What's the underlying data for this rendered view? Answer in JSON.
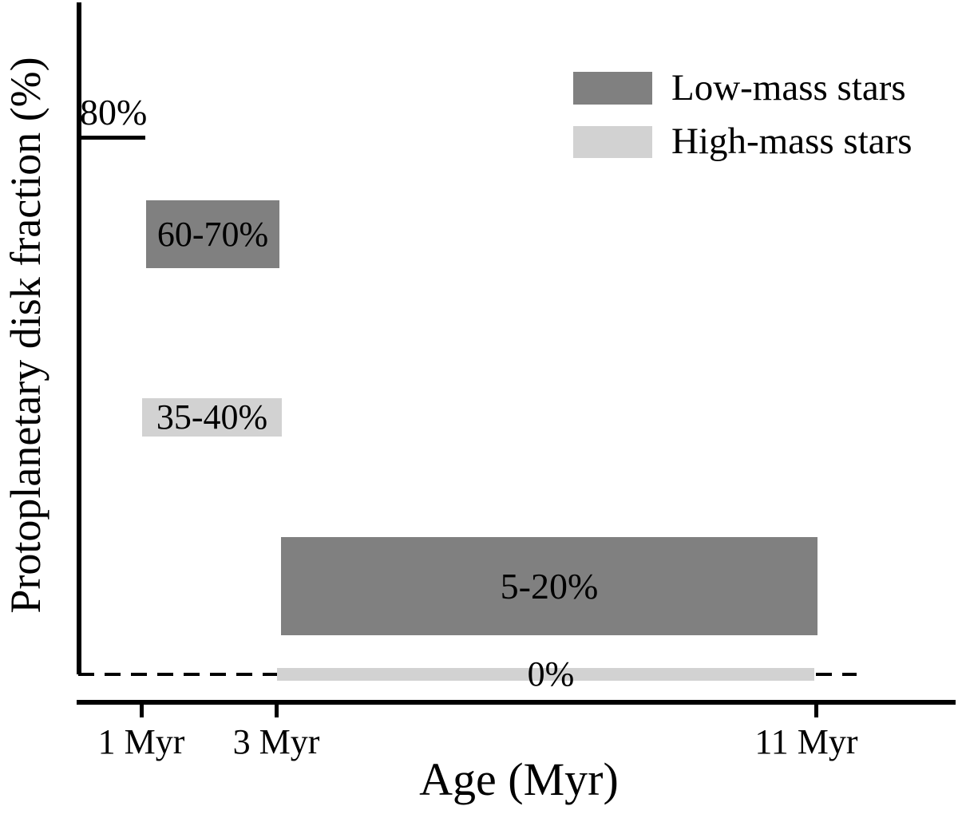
{
  "chart_data": {
    "type": "bar",
    "title": "",
    "xlabel": "Age (Myr)",
    "ylabel": "Protoplanetary disk fraction (%)",
    "x_tick_labels": [
      "1 Myr",
      "3 Myr",
      "11 Myr"
    ],
    "x_tick_values_myr": [
      1,
      3,
      11
    ],
    "x_range_myr": [
      0,
      13
    ],
    "y_range_pct": [
      0,
      100
    ],
    "grid": "off",
    "legend_position": "upper-right",
    "legend": [
      {
        "label": "Low-mass stars",
        "color": "#808080"
      },
      {
        "label": "High-mass stars",
        "color": "#d2d2d2"
      }
    ],
    "series": [
      {
        "name": "Low-mass stars",
        "color": "#808080",
        "boxes": [
          {
            "label": "60-70%",
            "age_myr": [
              1,
              3
            ],
            "fraction_pct": [
              60,
              70
            ]
          },
          {
            "label": "5-20%",
            "age_myr": [
              3,
              11
            ],
            "fraction_pct": [
              5,
              20
            ]
          }
        ]
      },
      {
        "name": "High-mass stars",
        "color": "#d2d2d2",
        "boxes": [
          {
            "label": "35-40%",
            "age_myr": [
              1,
              3
            ],
            "fraction_pct": [
              35,
              40
            ]
          },
          {
            "label": "0%",
            "age_myr": [
              3,
              11
            ],
            "fraction_pct": [
              0,
              0
            ]
          }
        ]
      }
    ],
    "annotations": [
      {
        "label": "80%",
        "type": "reference-line",
        "age_myr": [
          0,
          1
        ],
        "fraction_pct": 80
      }
    ],
    "zero_line_style": "dashed"
  }
}
